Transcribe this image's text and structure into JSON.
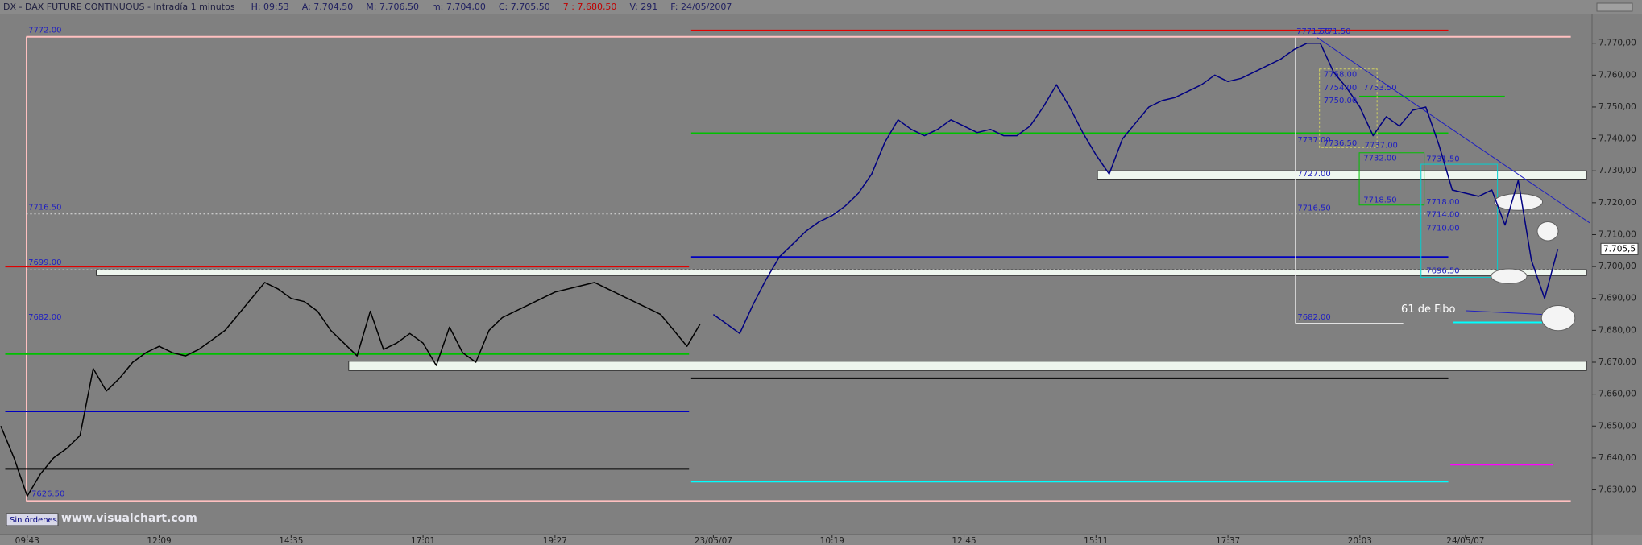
{
  "chart_data": {
    "type": "line",
    "title": "DX - DAX FUTURE CONTINUOUS - Intradía 1 minutos",
    "header_fields": [
      {
        "text": "H: 09:53",
        "color": "#202060"
      },
      {
        "text": "A: 7.704,50",
        "color": "#202060"
      },
      {
        "text": "M: 7.706,50",
        "color": "#202060"
      },
      {
        "text": "m: 7.704,00",
        "color": "#202060"
      },
      {
        "text": "C: 7.705,50",
        "color": "#202060"
      },
      {
        "text": "7 : 7.680,50",
        "color": "#c00000"
      },
      {
        "text": "V: 291",
        "color": "#202060"
      },
      {
        "text": "F: 24/05/2007",
        "color": "#202060"
      }
    ],
    "categories": [
      null,
      null,
      "09:43",
      null,
      null,
      null,
      null,
      null,
      null,
      null,
      null,
      null,
      "12:09",
      null,
      null,
      null,
      null,
      null,
      null,
      null,
      null,
      null,
      "14:35",
      null,
      null,
      null,
      null,
      null,
      null,
      null,
      null,
      null,
      "17:01",
      null,
      null,
      null,
      null,
      null,
      null,
      null,
      null,
      null,
      "19:27",
      null,
      null,
      null,
      null,
      null,
      null,
      null,
      null,
      null,
      null,
      null,
      "23/05/07",
      null,
      null,
      null,
      null,
      null,
      null,
      null,
      null,
      "10:19",
      null,
      null,
      null,
      null,
      null,
      null,
      null,
      null,
      null,
      "12:45",
      null,
      null,
      null,
      null,
      null,
      null,
      null,
      null,
      null,
      "15:11",
      null,
      null,
      null,
      null,
      null,
      null,
      null,
      null,
      null,
      "17:37",
      null,
      null,
      null,
      null,
      null,
      null,
      null,
      null,
      null,
      "20:03",
      null,
      null,
      null,
      null,
      null,
      null,
      null,
      "24/05/07",
      null,
      null,
      null,
      null,
      null,
      null,
      null
    ],
    "series": [
      {
        "color": "#000000",
        "values": [
          7650,
          7640,
          7628,
          7635,
          7640,
          7643,
          7647,
          7668,
          7661,
          7665,
          7670,
          7673,
          7675,
          7673,
          7672,
          7674,
          7677,
          7680,
          7685,
          7690,
          7695,
          7693,
          7690,
          7689,
          7686,
          7680,
          7676,
          7672,
          7686,
          7674,
          7676,
          7679,
          7676,
          7669,
          7681,
          7673,
          7670,
          7680,
          7684,
          7686,
          7688,
          7690,
          7692,
          7693,
          7694,
          7695,
          7693,
          7691,
          7689,
          7687,
          7685,
          7680,
          7675,
          7682,
          null,
          null,
          null,
          null,
          null,
          null,
          null,
          null,
          null,
          null,
          null,
          null,
          null,
          null,
          null,
          null,
          null,
          null,
          null,
          null,
          null,
          null,
          null,
          null,
          null,
          null,
          null,
          null,
          null,
          null,
          null,
          null,
          null,
          null,
          null,
          null,
          null,
          null,
          null,
          null,
          null,
          null,
          null,
          null,
          null,
          null,
          null,
          null,
          null,
          null,
          null,
          null,
          null,
          null,
          null,
          null,
          null,
          null,
          null,
          null,
          null,
          null,
          null,
          null,
          null
        ]
      },
      {
        "color": "#000080",
        "values": [
          null,
          null,
          null,
          null,
          null,
          null,
          null,
          null,
          null,
          null,
          null,
          null,
          null,
          null,
          null,
          null,
          null,
          null,
          null,
          null,
          null,
          null,
          null,
          null,
          null,
          null,
          null,
          null,
          null,
          null,
          null,
          null,
          null,
          null,
          null,
          null,
          null,
          null,
          null,
          null,
          null,
          null,
          null,
          null,
          null,
          null,
          null,
          null,
          null,
          null,
          null,
          null,
          null,
          null,
          7685,
          7682,
          7679,
          7688,
          7696,
          7703,
          7707,
          7711,
          7714,
          7716,
          7719,
          7723,
          7729,
          7739,
          7746,
          7743,
          7741,
          7743,
          7746,
          7744,
          7742,
          7743,
          7741,
          7741,
          7744,
          7750,
          7757,
          7750,
          7742,
          7735,
          7729,
          7740,
          7745,
          7750,
          7752,
          7753,
          7755,
          7757,
          7760,
          7758,
          7759,
          7761,
          7763,
          7765,
          7768,
          7770,
          7770,
          7761,
          7756,
          7750,
          7741,
          7747,
          7744,
          7749,
          7750,
          7738,
          7724,
          7723,
          7722,
          7724,
          7713,
          7727,
          7702,
          7690,
          7705.5
        ]
      }
    ],
    "ylim": [
      7616,
      7778
    ],
    "yticks": [
      {
        "value": 7630,
        "label": "7.630,00"
      },
      {
        "value": 7640,
        "label": "7.640,00"
      },
      {
        "value": 7650,
        "label": "7.650,00"
      },
      {
        "value": 7660,
        "label": "7.660,00"
      },
      {
        "value": 7670,
        "label": "7.670,00"
      },
      {
        "value": 7680,
        "label": "7.680,00"
      },
      {
        "value": 7690,
        "label": "7.690,00"
      },
      {
        "value": 7700,
        "label": "7.700,00"
      },
      {
        "value": 7710,
        "label": "7.710,00"
      },
      {
        "value": 7720,
        "label": "7.720,00"
      },
      {
        "value": 7730,
        "label": "7.730,00"
      },
      {
        "value": 7740,
        "label": "7.740,00"
      },
      {
        "value": 7750,
        "label": "7.750,00"
      },
      {
        "value": 7760,
        "label": "7.760,00"
      },
      {
        "value": 7770,
        "label": "7.770,00"
      }
    ],
    "last_price": {
      "value": 7705.5,
      "label": "7.705,5"
    },
    "levels": [
      {
        "value": 7700,
        "color": "#e00000"
      },
      {
        "value": 7672.6,
        "color": "#00c000"
      },
      {
        "value": 7654.6,
        "color": "#0000c0"
      },
      {
        "value": 7636.6,
        "color": "#000000"
      },
      {
        "value": 7774,
        "color": "#e00000"
      },
      {
        "value": 7741.8,
        "color": "#00c000"
      },
      {
        "value": 7703,
        "color": "#0000c0"
      },
      {
        "value": 7665,
        "color": "#000000"
      },
      {
        "value": 7632.6,
        "color": "#00ffff"
      },
      {
        "value": 7637.9,
        "color": "#ff00ff"
      },
      {
        "value": 7753.3,
        "color": "#00c000"
      },
      {
        "value": 7682.5,
        "color": "#00ffff"
      },
      {
        "value": 7772,
        "color": "#ffc0c0"
      },
      {
        "value": 7626.5,
        "color": "#ffc0c0"
      },
      {
        "value": 7716.5,
        "color": "#e0e0e0",
        "dash": true
      },
      {
        "value": 7699,
        "color": "#e0e0e0",
        "dash": true
      },
      {
        "value": 7682,
        "color": "#e0e0e0",
        "dash": true
      }
    ],
    "zones": [
      {
        "low": 7697.2,
        "high": 7699
      },
      {
        "low": 7667.4,
        "high": 7670.3
      },
      {
        "low": 7727.4,
        "high": 7730
      }
    ]
  },
  "annotations": [
    {
      "text": "7772.00",
      "color": "#2020c0"
    },
    {
      "text": "7716.50",
      "color": "#2020c0"
    },
    {
      "text": "7699.00",
      "color": "#2020c0"
    },
    {
      "text": "7682.00",
      "color": "#2020c0"
    },
    {
      "text": "7626.50",
      "color": "#2020c0"
    },
    {
      "text": "7771.50",
      "color": "#2020c0"
    },
    {
      "text": "7771.50",
      "color": "#2020c0"
    },
    {
      "text": "7758.00",
      "color": "#2020c0"
    },
    {
      "text": "7754.00",
      "color": "#2020c0"
    },
    {
      "text": "7750.00",
      "color": "#2020c0"
    },
    {
      "text": "7753.50",
      "color": "#2020c0"
    },
    {
      "text": "7737.00",
      "color": "#2020c0"
    },
    {
      "text": "7736.50",
      "color": "#2020c0"
    },
    {
      "text": "7737.00",
      "color": "#2020c0"
    },
    {
      "text": "7732.00",
      "color": "#2020c0"
    },
    {
      "text": "7731.50",
      "color": "#2020c0"
    },
    {
      "text": "7727.00",
      "color": "#2020c0"
    },
    {
      "text": "7718.50",
      "color": "#2020c0"
    },
    {
      "text": "7718.00",
      "color": "#2020c0"
    },
    {
      "text": "7714.00",
      "color": "#2020c0"
    },
    {
      "text": "7710.00",
      "color": "#2020c0"
    },
    {
      "text": "7716.50",
      "color": "#2020c0"
    },
    {
      "text": "7696.50",
      "color": "#2020c0"
    },
    {
      "text": "7682.00",
      "color": "#2020c0"
    },
    {
      "text": "61 de Fibo",
      "color": "#ffffff"
    }
  ],
  "footer": {
    "status": "Sin órdenes",
    "brand": "www.visualchart.com"
  }
}
